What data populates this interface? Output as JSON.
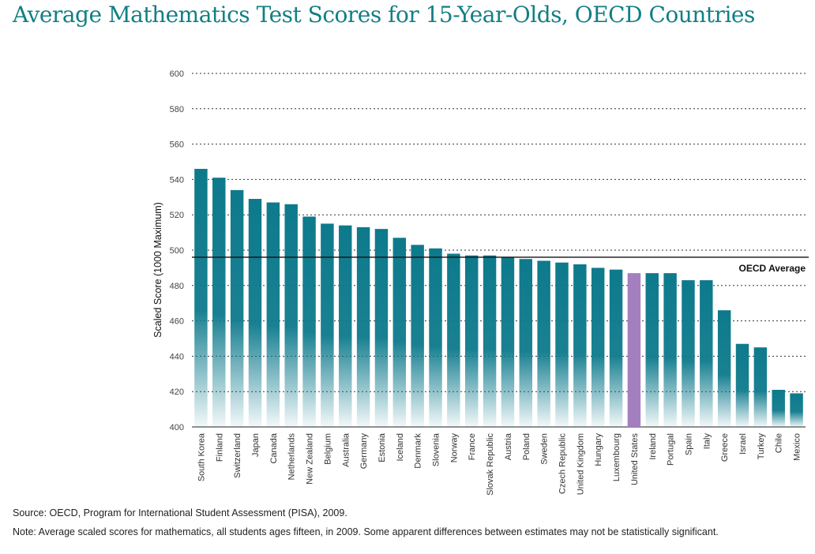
{
  "title": "Average Mathematics Test Scores for 15-Year-Olds, OECD Countries",
  "source": "Source: OECD, Program for International Student Assessment (PISA), 2009.",
  "note": "Note: Average scaled scores for mathematics, all students ages fifteen, in 2009. Some apparent differences between estimates may not be statistically significant.",
  "colors": {
    "bar": "#0d7a8c",
    "highlight": "#a47fc0",
    "title": "#127f84"
  },
  "chart_data": {
    "type": "bar",
    "ylabel": "Scaled Score (1000 Maximum)",
    "ylim": [
      400,
      600
    ],
    "yticks": [
      400,
      420,
      440,
      460,
      480,
      500,
      520,
      540,
      560,
      580,
      600
    ],
    "grid": true,
    "reference_line": {
      "label": "OECD Average",
      "value": 496
    },
    "highlight_category": "United States",
    "categories": [
      "South Korea",
      "Finland",
      "Switzerland",
      "Japan",
      "Canada",
      "Netherlands",
      "New Zealand",
      "Belgium",
      "Australia",
      "Germany",
      "Estonia",
      "Iceland",
      "Denmark",
      "Slovenia",
      "Norway",
      "France",
      "Slovak Republic",
      "Austria",
      "Poland",
      "Sweden",
      "Czech Republic",
      "United Kingdom",
      "Hungary",
      "Luxembourg",
      "United States",
      "Ireland",
      "Portugal",
      "Spain",
      "Italy",
      "Greece",
      "Israel",
      "Turkey",
      "Chile",
      "Mexico"
    ],
    "values": [
      546,
      541,
      534,
      529,
      527,
      526,
      519,
      515,
      514,
      513,
      512,
      507,
      503,
      501,
      498,
      497,
      497,
      496,
      495,
      494,
      493,
      492,
      490,
      489,
      487,
      487,
      487,
      483,
      483,
      466,
      447,
      445,
      421,
      419
    ]
  }
}
